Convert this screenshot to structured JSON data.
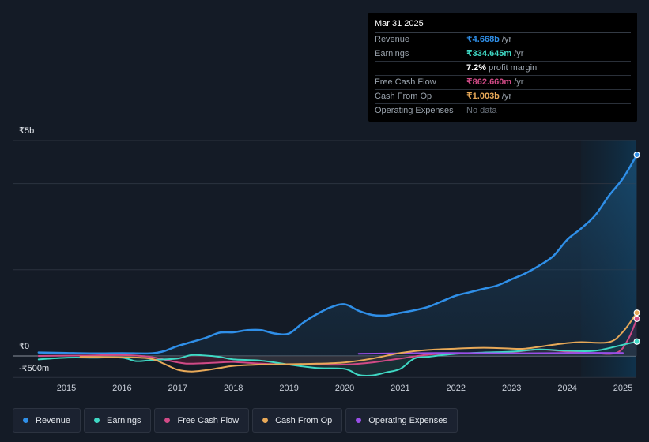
{
  "chart_data": {
    "type": "line",
    "title": "",
    "xlabel": "",
    "ylabel": "",
    "x_range": [
      2014.5,
      2025.25
    ],
    "ylim": [
      -500,
      5000
    ],
    "y_tick_labels": {
      "top": "₹5b",
      "zero": "₹0",
      "bottom": "-₹500m"
    },
    "x_ticks": [
      {
        "value": 2015,
        "label": "2015"
      },
      {
        "value": 2016,
        "label": "2016"
      },
      {
        "value": 2017,
        "label": "2017"
      },
      {
        "value": 2018,
        "label": "2018"
      },
      {
        "value": 2019,
        "label": "2019"
      },
      {
        "value": 2020,
        "label": "2020"
      },
      {
        "value": 2021,
        "label": "2021"
      },
      {
        "value": 2022,
        "label": "2022"
      },
      {
        "value": 2023,
        "label": "2023"
      },
      {
        "value": 2024,
        "label": "2024"
      },
      {
        "value": 2025,
        "label": "2025"
      }
    ],
    "gridlines": [
      5000,
      4000,
      2000,
      0,
      -500
    ],
    "forecast_start": 2024.25,
    "series": [
      {
        "name": "Revenue",
        "color": "#2f8fe8",
        "fill": true,
        "points": [
          [
            2014.5,
            80
          ],
          [
            2015,
            70
          ],
          [
            2015.5,
            60
          ],
          [
            2016,
            65
          ],
          [
            2016.5,
            60
          ],
          [
            2016.75,
            110
          ],
          [
            2017,
            230
          ],
          [
            2017.5,
            420
          ],
          [
            2017.75,
            540
          ],
          [
            2018,
            550
          ],
          [
            2018.25,
            600
          ],
          [
            2018.5,
            600
          ],
          [
            2018.75,
            520
          ],
          [
            2019,
            520
          ],
          [
            2019.25,
            770
          ],
          [
            2019.5,
            970
          ],
          [
            2019.75,
            1130
          ],
          [
            2020,
            1200
          ],
          [
            2020.25,
            1050
          ],
          [
            2020.5,
            950
          ],
          [
            2020.75,
            940
          ],
          [
            2021,
            1000
          ],
          [
            2021.25,
            1060
          ],
          [
            2021.5,
            1140
          ],
          [
            2021.75,
            1270
          ],
          [
            2022,
            1400
          ],
          [
            2022.25,
            1480
          ],
          [
            2022.5,
            1560
          ],
          [
            2022.75,
            1640
          ],
          [
            2023,
            1780
          ],
          [
            2023.25,
            1920
          ],
          [
            2023.5,
            2100
          ],
          [
            2023.75,
            2320
          ],
          [
            2024,
            2700
          ],
          [
            2024.25,
            2960
          ],
          [
            2024.5,
            3260
          ],
          [
            2024.75,
            3720
          ],
          [
            2025,
            4120
          ],
          [
            2025.25,
            4668
          ]
        ],
        "end_value": 4668
      },
      {
        "name": "Earnings",
        "color": "#3fd8c4",
        "fill": true,
        "points": [
          [
            2014.5,
            -80
          ],
          [
            2015,
            -40
          ],
          [
            2015.5,
            -40
          ],
          [
            2016,
            -40
          ],
          [
            2016.25,
            -120
          ],
          [
            2016.5,
            -100
          ],
          [
            2016.75,
            -80
          ],
          [
            2017,
            -60
          ],
          [
            2017.25,
            20
          ],
          [
            2017.5,
            10
          ],
          [
            2017.75,
            -20
          ],
          [
            2018,
            -80
          ],
          [
            2018.5,
            -110
          ],
          [
            2019,
            -200
          ],
          [
            2019.5,
            -280
          ],
          [
            2020,
            -300
          ],
          [
            2020.25,
            -440
          ],
          [
            2020.5,
            -450
          ],
          [
            2020.75,
            -380
          ],
          [
            2021,
            -300
          ],
          [
            2021.25,
            -60
          ],
          [
            2021.5,
            -20
          ],
          [
            2022,
            50
          ],
          [
            2022.5,
            80
          ],
          [
            2023,
            100
          ],
          [
            2023.5,
            150
          ],
          [
            2024,
            120
          ],
          [
            2024.5,
            120
          ],
          [
            2025,
            260
          ],
          [
            2025.25,
            335
          ]
        ],
        "end_value": 334.645
      },
      {
        "name": "Free Cash Flow",
        "color": "#d14a86",
        "fill": true,
        "points": [
          [
            2014.5,
            0
          ],
          [
            2015.25,
            10
          ],
          [
            2016,
            20
          ],
          [
            2016.5,
            -20
          ],
          [
            2017,
            -150
          ],
          [
            2017.25,
            -180
          ],
          [
            2017.75,
            -150
          ],
          [
            2018,
            -140
          ],
          [
            2018.5,
            -180
          ],
          [
            2019,
            -200
          ],
          [
            2019.5,
            -200
          ],
          [
            2020,
            -200
          ],
          [
            2020.5,
            -150
          ],
          [
            2021,
            -60
          ],
          [
            2021.5,
            30
          ],
          [
            2022,
            60
          ],
          [
            2022.5,
            70
          ],
          [
            2023,
            90
          ],
          [
            2023.5,
            150
          ],
          [
            2024,
            100
          ],
          [
            2024.5,
            60
          ],
          [
            2024.9,
            80
          ],
          [
            2025.1,
            400
          ],
          [
            2025.25,
            863
          ]
        ],
        "end_value": 862.66
      },
      {
        "name": "Cash From Op",
        "color": "#e8a958",
        "fill": false,
        "points": [
          [
            2015.25,
            -20
          ],
          [
            2016,
            -30
          ],
          [
            2016.5,
            -60
          ],
          [
            2016.75,
            -180
          ],
          [
            2017,
            -320
          ],
          [
            2017.25,
            -360
          ],
          [
            2017.5,
            -330
          ],
          [
            2017.75,
            -280
          ],
          [
            2018,
            -230
          ],
          [
            2018.5,
            -200
          ],
          [
            2019,
            -190
          ],
          [
            2019.5,
            -180
          ],
          [
            2020,
            -150
          ],
          [
            2020.5,
            -60
          ],
          [
            2021,
            70
          ],
          [
            2021.5,
            140
          ],
          [
            2022,
            170
          ],
          [
            2022.5,
            190
          ],
          [
            2023,
            170
          ],
          [
            2023.25,
            170
          ],
          [
            2023.75,
            260
          ],
          [
            2024,
            300
          ],
          [
            2024.25,
            320
          ],
          [
            2024.75,
            320
          ],
          [
            2025,
            560
          ],
          [
            2025.25,
            1003
          ]
        ],
        "end_value": 1003
      },
      {
        "name": "Operating Expenses",
        "color": "#9a4fe8",
        "fill": false,
        "points": [
          [
            2020.25,
            50
          ],
          [
            2021,
            60
          ],
          [
            2022,
            70
          ],
          [
            2023,
            60
          ],
          [
            2024,
            70
          ],
          [
            2025,
            70
          ]
        ]
      }
    ],
    "tooltip": {
      "date": "Mar 31 2025",
      "rows": [
        {
          "label": "Revenue",
          "value": "₹4.668b",
          "unit": "/yr",
          "color": "#2f8fe8"
        },
        {
          "label": "Earnings",
          "value": "₹334.645m",
          "unit": "/yr",
          "color": "#3fd8c4"
        },
        {
          "label": "",
          "value": "7.2%",
          "unit": "profit margin",
          "color": "#ffffff"
        },
        {
          "label": "Free Cash Flow",
          "value": "₹862.660m",
          "unit": "/yr",
          "color": "#d14a86"
        },
        {
          "label": "Cash From Op",
          "value": "₹1.003b",
          "unit": "/yr",
          "color": "#e8a958"
        },
        {
          "label": "Operating Expenses",
          "value": "",
          "unit": "No data",
          "color": "#6b737d"
        }
      ]
    },
    "legend": [
      {
        "label": "Revenue",
        "color": "#2f8fe8"
      },
      {
        "label": "Earnings",
        "color": "#3fd8c4"
      },
      {
        "label": "Free Cash Flow",
        "color": "#d14a86"
      },
      {
        "label": "Cash From Op",
        "color": "#e8a958"
      },
      {
        "label": "Operating Expenses",
        "color": "#9a4fe8"
      }
    ]
  }
}
